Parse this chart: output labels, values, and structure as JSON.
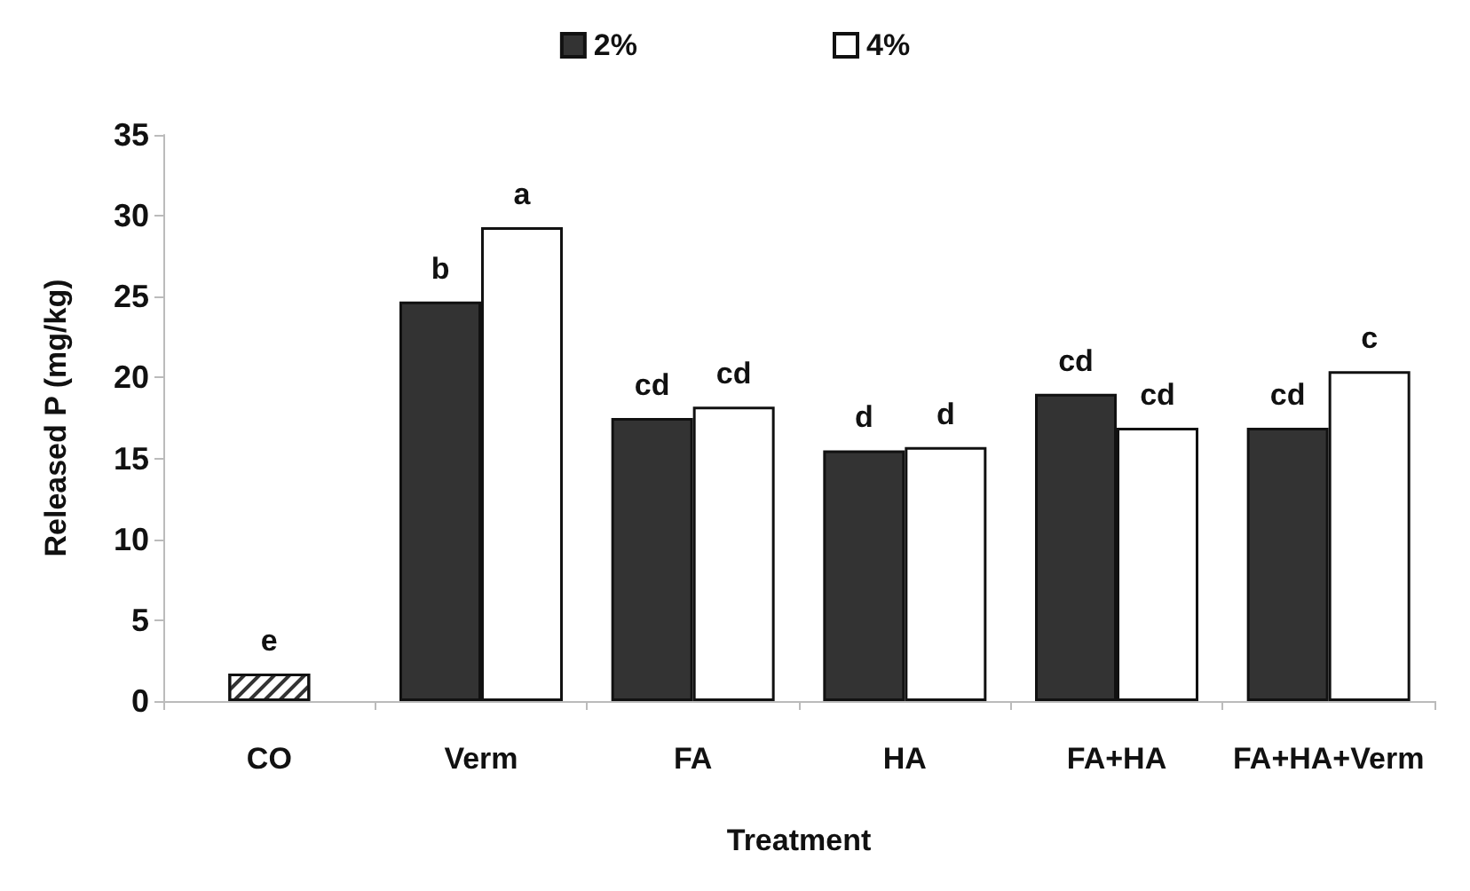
{
  "chart_data": {
    "type": "bar",
    "xlabel": "Treatment",
    "ylabel": "Released P (mg/kg)",
    "categories": [
      "CO",
      "Verm",
      "FA",
      "HA",
      "FA+HA",
      "FA+HA+Verm"
    ],
    "series": [
      {
        "name": "2%",
        "color": "#333333",
        "values": [
          null,
          24.7,
          17.5,
          15.5,
          19.0,
          16.9
        ],
        "value_labels": [
          null,
          "b",
          "cd",
          "d",
          "cd",
          "cd"
        ]
      },
      {
        "name": "4%",
        "color": "#ffffff",
        "values": [
          null,
          29.3,
          18.2,
          15.7,
          16.9,
          20.4
        ],
        "value_labels": [
          null,
          "a",
          "cd",
          "d",
          "cd",
          "c"
        ]
      },
      {
        "type": "bar",
        "color": "#ffffff",
        "values": [
          1.7,
          null,
          null,
          null,
          null,
          null
        ],
        "value_labels": [
          "e",
          null,
          null,
          null,
          null,
          null
        ]
      }
    ],
    "ylim": [
      0,
      35
    ],
    "yticks": [
      0,
      5,
      10,
      15,
      20,
      25,
      30,
      35
    ],
    "grid": false,
    "legend": "top"
  }
}
